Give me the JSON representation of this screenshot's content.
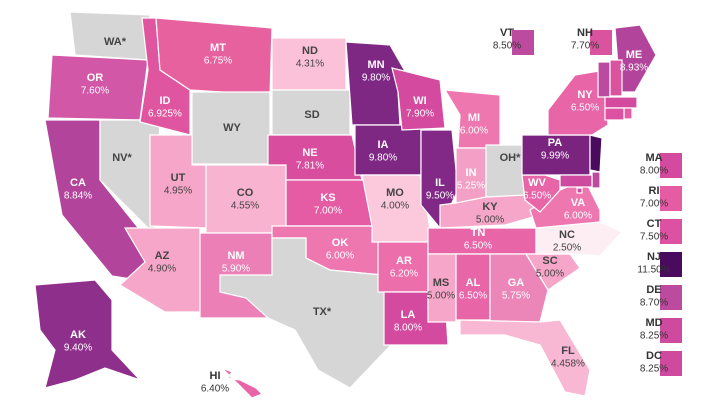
{
  "states": [
    {
      "abbr": "WA*",
      "color": "#d6d6d6"
    },
    {
      "abbr": "OR",
      "rate": "7.60%",
      "color": "#d257a6"
    },
    {
      "abbr": "CA",
      "rate": "8.84%",
      "color": "#b3449b"
    },
    {
      "abbr": "NV*",
      "color": "#d6d6d6"
    },
    {
      "abbr": "ID",
      "rate": "6.925%",
      "color": "#e0559f"
    },
    {
      "abbr": "MT",
      "rate": "6.75%",
      "color": "#e8619f"
    },
    {
      "abbr": "WY",
      "color": "#d6d6d6"
    },
    {
      "abbr": "UT",
      "rate": "4.95%",
      "color": "#f6a6c8"
    },
    {
      "abbr": "CO",
      "rate": "4.55%",
      "color": "#f7b3cf"
    },
    {
      "abbr": "AZ",
      "rate": "4.90%",
      "color": "#f6a6c8"
    },
    {
      "abbr": "NM",
      "rate": "5.90%",
      "color": "#ec7fb5"
    },
    {
      "abbr": "ND",
      "rate": "4.31%",
      "color": "#fac1d8"
    },
    {
      "abbr": "SD",
      "color": "#d6d6d6"
    },
    {
      "abbr": "NE",
      "rate": "7.81%",
      "color": "#d94d9e"
    },
    {
      "abbr": "KS",
      "rate": "7.00%",
      "color": "#e55ca5"
    },
    {
      "abbr": "OK",
      "rate": "6.00%",
      "color": "#ef77b0"
    },
    {
      "abbr": "TX*",
      "color": "#d6d6d6"
    },
    {
      "abbr": "MN",
      "rate": "9.80%",
      "color": "#7e2884"
    },
    {
      "abbr": "IA",
      "rate": "9.80%",
      "color": "#7e2884"
    },
    {
      "abbr": "MO",
      "rate": "4.00%",
      "color": "#fbc8dc"
    },
    {
      "abbr": "AR",
      "rate": "6.20%",
      "color": "#ec6eab"
    },
    {
      "abbr": "LA",
      "rate": "8.00%",
      "color": "#d44a9e"
    },
    {
      "abbr": "WI",
      "rate": "7.90%",
      "color": "#d44a9e"
    },
    {
      "abbr": "IL",
      "rate": "9.50%",
      "color": "#822886"
    },
    {
      "abbr": "MI",
      "rate": "6.00%",
      "color": "#ef77b0"
    },
    {
      "abbr": "IN",
      "rate": "5.25%",
      "color": "#f3a0c6"
    },
    {
      "abbr": "OH*",
      "color": "#d6d6d6"
    },
    {
      "abbr": "KY",
      "rate": "5.00%",
      "color": "#f6a6c8"
    },
    {
      "abbr": "TN",
      "rate": "6.50%",
      "color": "#e865a8"
    },
    {
      "abbr": "MS",
      "rate": "5.00%",
      "color": "#f6a6c8"
    },
    {
      "abbr": "AL",
      "rate": "6.50%",
      "color": "#e865a8"
    },
    {
      "abbr": "GA",
      "rate": "5.75%",
      "color": "#ed86b8"
    },
    {
      "abbr": "FL",
      "rate": "4.458%",
      "color": "#f8b7d2"
    },
    {
      "abbr": "SC",
      "rate": "5.00%",
      "color": "#f6a6c8"
    },
    {
      "abbr": "NC",
      "rate": "2.50%",
      "color": "#fdeef3"
    },
    {
      "abbr": "VA",
      "rate": "6.00%",
      "color": "#ef77b0"
    },
    {
      "abbr": "WV",
      "rate": "6.50%",
      "color": "#e865a8"
    },
    {
      "abbr": "PA",
      "rate": "9.99%",
      "color": "#7a2480"
    },
    {
      "abbr": "NY",
      "rate": "6.50%",
      "color": "#e865a8"
    },
    {
      "abbr": "ME",
      "rate": "8.93%",
      "color": "#b3449b"
    },
    {
      "abbr": "VT",
      "rate": "8.50%",
      "color": "#bc4a9e"
    },
    {
      "abbr": "NH",
      "rate": "7.70%",
      "color": "#d9539f"
    },
    {
      "abbr": "MA",
      "rate": "8.00%",
      "color": "#d44a9e"
    },
    {
      "abbr": "RI",
      "rate": "7.00%",
      "color": "#e55ca5"
    },
    {
      "abbr": "CT",
      "rate": "7.50%",
      "color": "#dc51a1"
    },
    {
      "abbr": "NJ",
      "rate": "11.50%",
      "color": "#4a0a5e"
    },
    {
      "abbr": "DE",
      "rate": "8.70%",
      "color": "#bc4a9e"
    },
    {
      "abbr": "MD",
      "rate": "8.25%",
      "color": "#cd4a9f"
    },
    {
      "abbr": "DC",
      "rate": "8.25%",
      "color": "#cd4a9f"
    },
    {
      "abbr": "AK",
      "rate": "9.40%",
      "color": "#8f2f8c"
    },
    {
      "abbr": "HI",
      "rate": "6.40%",
      "color": "#e865a8"
    }
  ]
}
